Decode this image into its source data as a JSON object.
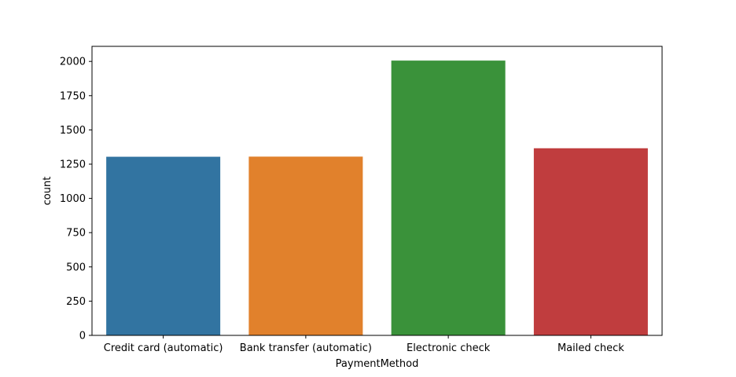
{
  "chart_data": {
    "type": "bar",
    "title": "",
    "xlabel": "PaymentMethod",
    "ylabel": "count",
    "categories": [
      "Credit card (automatic)",
      "Bank transfer (automatic)",
      "Electronic check",
      "Mailed check"
    ],
    "values": [
      1304,
      1305,
      2006,
      1366
    ],
    "ylim": [
      0,
      2110
    ],
    "yticks": [
      0,
      250,
      500,
      750,
      1000,
      1250,
      1500,
      1750,
      2000
    ],
    "colors": [
      "#3274a1",
      "#e1812c",
      "#3a923a",
      "#c03d3e"
    ],
    "grid": false,
    "legend": "none"
  }
}
